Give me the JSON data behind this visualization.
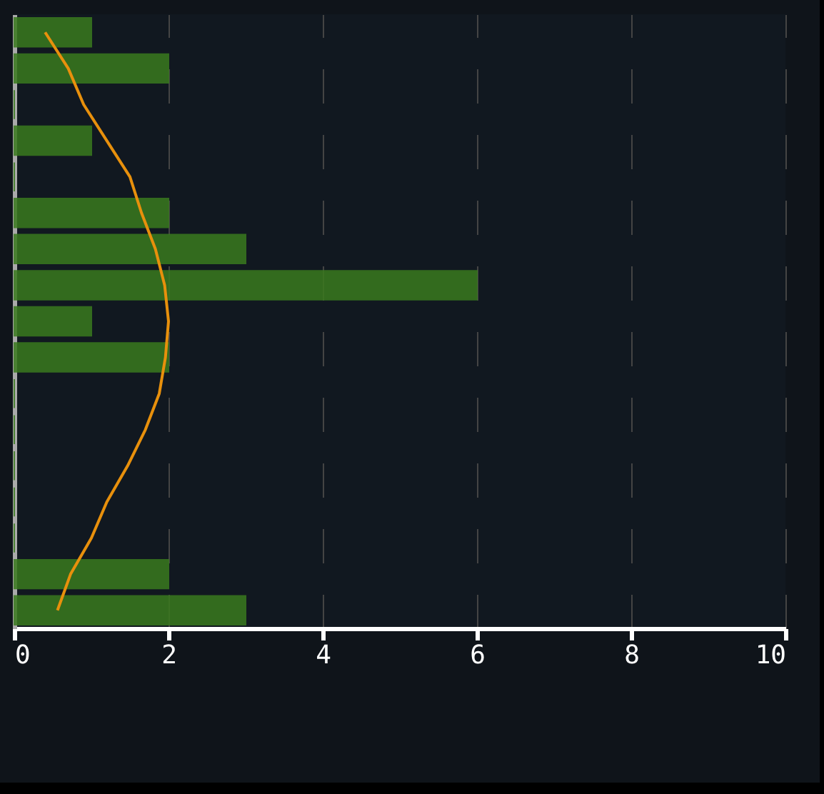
{
  "chart_data": {
    "type": "bar",
    "orientation": "horizontal",
    "categories": [
      null,
      null,
      null,
      null,
      null,
      null,
      null,
      null,
      null,
      null,
      null,
      null,
      null,
      null,
      null,
      null,
      null
    ],
    "series": [
      {
        "color": "#3a7a1e",
        "values": [
          1,
          2,
          0,
          1,
          0,
          2,
          3,
          6,
          1,
          2,
          0,
          0,
          0,
          0,
          0,
          2,
          3
        ]
      },
      {
        "type": "line",
        "color": "#e8900c",
        "values": [
          0.4,
          0.7,
          0.9,
          1.2,
          1.5,
          1.65,
          1.83,
          1.95,
          2.0,
          1.96,
          1.88,
          1.7,
          1.47,
          1.2,
          1.0,
          0.73,
          0.56
        ]
      }
    ],
    "xlim": [
      0,
      10
    ],
    "xticks": [
      0,
      2,
      4,
      6,
      8,
      10
    ],
    "grid": "x",
    "tick_labels": "x"
  }
}
